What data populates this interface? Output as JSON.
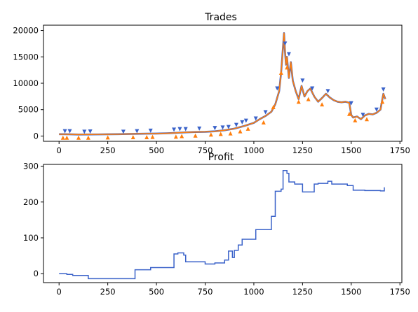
{
  "chart_data": [
    {
      "type": "line",
      "title": "Trades",
      "xlabel": "",
      "ylabel": "",
      "xlim": [
        -80,
        1760
      ],
      "ylim": [
        -1000,
        21000
      ],
      "xticks": [
        0,
        250,
        500,
        750,
        1000,
        1250,
        1500,
        1750
      ],
      "yticks": [
        0,
        5000,
        10000,
        15000,
        20000
      ],
      "grid": false,
      "legend": "none",
      "colors": {
        "price": "#ff7f0e",
        "price_shade": "#3a62c9",
        "sell_marker": "#3a62c9",
        "buy_marker": "#ff7f0e"
      },
      "series": [
        {
          "x": [
            0,
            50,
            100,
            150,
            200,
            250,
            300,
            350,
            400,
            450,
            500,
            550,
            600,
            650,
            700,
            750,
            800,
            850,
            900,
            950,
            1000,
            1030,
            1060,
            1090,
            1110,
            1130,
            1140,
            1150,
            1155,
            1160,
            1165,
            1170,
            1180,
            1190,
            1200,
            1215,
            1230,
            1245,
            1260,
            1275,
            1290,
            1310,
            1330,
            1350,
            1370,
            1390,
            1410,
            1430,
            1450,
            1470,
            1490,
            1500,
            1510,
            1530,
            1550,
            1570,
            1590,
            1610,
            1630,
            1650,
            1665,
            1675
          ],
          "y": [
            350,
            330,
            280,
            300,
            310,
            330,
            350,
            380,
            420,
            450,
            470,
            520,
            600,
            700,
            760,
            800,
            900,
            1100,
            1400,
            1900,
            2500,
            3200,
            3800,
            4600,
            6000,
            8500,
            12000,
            17000,
            19500,
            16000,
            13500,
            15000,
            11000,
            14000,
            10500,
            8500,
            7000,
            9500,
            7500,
            8500,
            9000,
            7500,
            6500,
            7200,
            8000,
            7300,
            6800,
            6500,
            6400,
            6500,
            6300,
            4000,
            3500,
            3700,
            3200,
            3900,
            4200,
            4100,
            4400,
            5000,
            8000,
            7000
          ]
        }
      ],
      "sell_markers": {
        "x": [
          30,
          55,
          130,
          160,
          330,
          400,
          470,
          590,
          620,
          650,
          720,
          800,
          840,
          870,
          910,
          940,
          960,
          1010,
          1060,
          1120,
          1160,
          1180,
          1250,
          1300,
          1380,
          1500,
          1560,
          1630,
          1665
        ],
        "y": [
          900,
          900,
          800,
          850,
          800,
          900,
          1000,
          1200,
          1300,
          1300,
          1400,
          1500,
          1600,
          1700,
          2100,
          2600,
          2900,
          3300,
          4500,
          9000,
          17500,
          15500,
          10500,
          9000,
          8500,
          6200,
          4000,
          5000,
          8800
        ]
      },
      "buy_markers": {
        "x": [
          20,
          40,
          100,
          150,
          250,
          380,
          450,
          480,
          600,
          630,
          700,
          780,
          830,
          880,
          930,
          970,
          1050,
          1100,
          1140,
          1170,
          1230,
          1280,
          1350,
          1490,
          1520,
          1580,
          1660
        ],
        "y": [
          -300,
          -300,
          -300,
          -300,
          -250,
          -200,
          -200,
          -150,
          -100,
          0,
          100,
          300,
          400,
          500,
          900,
          1400,
          2600,
          5500,
          12000,
          13000,
          6500,
          7000,
          6000,
          4200,
          3000,
          3200,
          6500
        ]
      }
    },
    {
      "type": "line",
      "title": "Profit",
      "xlabel": "",
      "ylabel": "",
      "xlim": [
        -80,
        1760
      ],
      "ylim": [
        -25,
        305
      ],
      "xticks": [
        0,
        250,
        500,
        750,
        1000,
        1250,
        1500,
        1750
      ],
      "yticks": [
        0,
        100,
        200,
        300
      ],
      "grid": false,
      "legend": "none",
      "colors": {
        "line": "#3a62c9"
      },
      "series": [
        {
          "step": true,
          "x": [
            0,
            40,
            70,
            150,
            390,
            470,
            590,
            610,
            640,
            650,
            750,
            800,
            850,
            870,
            890,
            900,
            920,
            940,
            1010,
            1090,
            1110,
            1140,
            1150,
            1170,
            1180,
            1210,
            1250,
            1310,
            1330,
            1380,
            1400,
            1480,
            1510,
            1570,
            1650,
            1670
          ],
          "y": [
            0,
            -2,
            -5,
            -14,
            11,
            17,
            55,
            58,
            52,
            33,
            27,
            30,
            38,
            63,
            45,
            65,
            80,
            96,
            123,
            160,
            230,
            236,
            288,
            280,
            256,
            250,
            228,
            250,
            252,
            258,
            250,
            246,
            233,
            232,
            231,
            241
          ]
        }
      ]
    }
  ]
}
